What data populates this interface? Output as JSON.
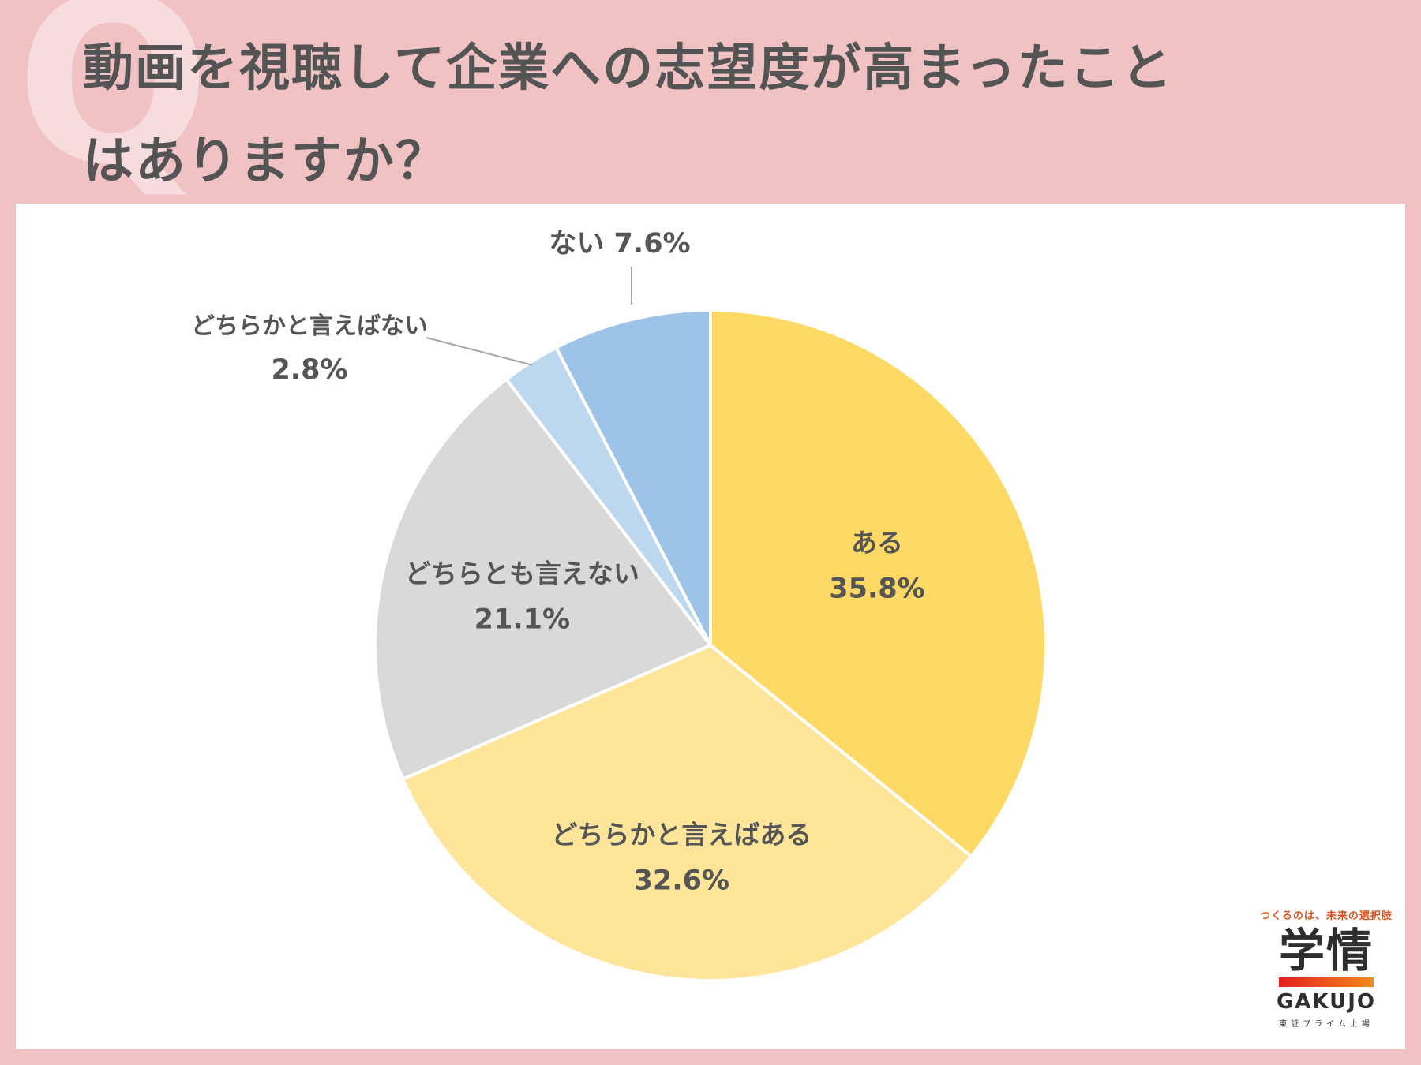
{
  "background_mark": "Q",
  "question": {
    "line1": "動画を視聴して企業への志望度が高まったこと",
    "line2": "はありますか？"
  },
  "chart_data": {
    "type": "pie",
    "start_angle": "top",
    "direction": "clockwise",
    "slices": [
      {
        "label": "ある",
        "value": 35.8,
        "value_label": "35.8%",
        "color": "#fed966"
      },
      {
        "label": "どちらかと言えばある",
        "value": 32.6,
        "value_label": "32.6%",
        "color": "#ffe59a"
      },
      {
        "label": "どちらとも言えない",
        "value": 21.1,
        "value_label": "21.1%",
        "color": "#d9d9d9"
      },
      {
        "label": "どちらかと言えばない",
        "value": 2.8,
        "value_label": "2.8%",
        "color": "#bdd7ee"
      },
      {
        "label": "ない",
        "value": 7.6,
        "value_label": "7.6%",
        "color": "#9dc3e6"
      }
    ],
    "external_label": {
      "nai_combined": "ない 7.6%"
    }
  },
  "logo": {
    "tagline": "つくるのは、未来の選択肢",
    "kanji": "学情",
    "brand": "GAKUJO",
    "subtext": "東証プライム上場"
  }
}
